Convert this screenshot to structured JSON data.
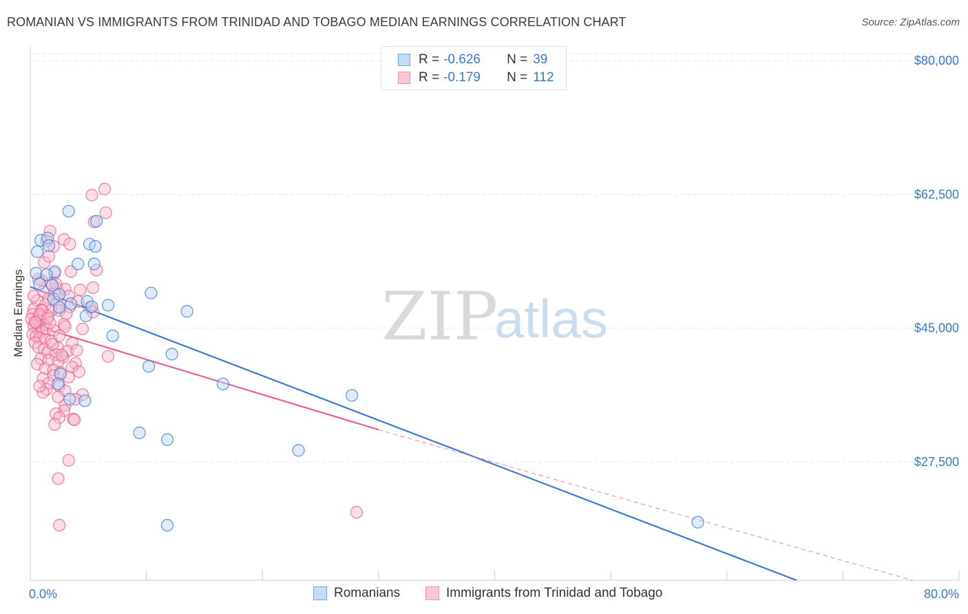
{
  "title": "ROMANIAN VS IMMIGRANTS FROM TRINIDAD AND TOBAGO MEDIAN EARNINGS CORRELATION CHART",
  "source": "Source: ZipAtlas.com",
  "watermark": {
    "zip": "ZIP",
    "atlas": "atlas"
  },
  "legend_top": {
    "rows": [
      {
        "r_label": "R =",
        "r_value": "-0.626",
        "n_label": "N =",
        "n_value": "39",
        "color": "#6fa8e8",
        "fill": "#c5dcf7"
      },
      {
        "r_label": "R =",
        "r_value": "-0.179",
        "n_label": "N =",
        "n_value": "112",
        "color": "#ee8fad",
        "fill": "#f9c8d7"
      }
    ]
  },
  "legend_bottom": [
    {
      "label": "Romanians",
      "color": "#6fa8e8",
      "fill": "#c5dcf7"
    },
    {
      "label": "Immigrants from Trinidad and Tobago",
      "color": "#ee8fad",
      "fill": "#f9c8d7"
    }
  ],
  "chart_data": {
    "type": "scatter",
    "title": "ROMANIAN VS IMMIGRANTS FROM TRINIDAD AND TOBAGO MEDIAN EARNINGS CORRELATION CHART",
    "xlabel": "",
    "ylabel": "Median Earnings",
    "xlim": [
      0,
      80
    ],
    "ylim": [
      12000,
      82000
    ],
    "x_tick_labels": [
      "0.0%",
      "80.0%"
    ],
    "y_ticks": [
      27500,
      45000,
      62500,
      80000
    ],
    "y_tick_labels": [
      "$27,500",
      "$45,000",
      "$62,500",
      "$80,000"
    ],
    "grid": true,
    "legend_placement": "top-center",
    "series": [
      {
        "name": "Romanians",
        "color": "#3a78d4",
        "fill": "#b9d3f3",
        "points": [
          [
            0.6,
            55000
          ],
          [
            0.5,
            52200
          ],
          [
            0.9,
            56500
          ],
          [
            1.5,
            56800
          ],
          [
            3.3,
            60300
          ],
          [
            5.7,
            59000
          ],
          [
            2.1,
            52400
          ],
          [
            1.9,
            50600
          ],
          [
            2.0,
            48800
          ],
          [
            2.5,
            47700
          ],
          [
            1.6,
            55800
          ],
          [
            5.1,
            56000
          ],
          [
            5.6,
            55700
          ],
          [
            4.1,
            53400
          ],
          [
            2.5,
            49400
          ],
          [
            4.9,
            48500
          ],
          [
            4.8,
            46600
          ],
          [
            5.3,
            47800
          ],
          [
            5.5,
            53400
          ],
          [
            6.7,
            48000
          ],
          [
            10.4,
            49600
          ],
          [
            13.5,
            47200
          ],
          [
            7.1,
            44000
          ],
          [
            12.2,
            41600
          ],
          [
            10.2,
            40000
          ],
          [
            2.6,
            39000
          ],
          [
            2.4,
            37700
          ],
          [
            3.4,
            35700
          ],
          [
            4.7,
            35500
          ],
          [
            16.6,
            37700
          ],
          [
            27.7,
            36200
          ],
          [
            9.4,
            31300
          ],
          [
            11.8,
            30400
          ],
          [
            23.1,
            29000
          ],
          [
            11.8,
            19200
          ],
          [
            57.5,
            19600
          ],
          [
            0.8,
            50800
          ],
          [
            1.4,
            52000
          ],
          [
            3.5,
            48200
          ]
        ],
        "trend": {
          "x": [
            0,
            66
          ],
          "y": [
            50400,
            12000
          ]
        }
      },
      {
        "name": "Immigrants from Trinidad and Tobago",
        "color": "#e8608c",
        "fill": "#f6b8cc",
        "points": [
          [
            6.4,
            63200
          ],
          [
            5.3,
            62400
          ],
          [
            6.5,
            60100
          ],
          [
            5.5,
            58900
          ],
          [
            1.7,
            57700
          ],
          [
            2.9,
            56600
          ],
          [
            2.0,
            55700
          ],
          [
            1.4,
            56400
          ],
          [
            1.2,
            53600
          ],
          [
            3.4,
            56000
          ],
          [
            1.6,
            54400
          ],
          [
            2.1,
            52200
          ],
          [
            3.5,
            52400
          ],
          [
            5.7,
            52600
          ],
          [
            1.0,
            51200
          ],
          [
            1.8,
            50900
          ],
          [
            0.7,
            51400
          ],
          [
            2.3,
            50200
          ],
          [
            3.0,
            50100
          ],
          [
            4.3,
            50000
          ],
          [
            1.1,
            49800
          ],
          [
            2.1,
            49500
          ],
          [
            1.6,
            48900
          ],
          [
            3.3,
            49200
          ],
          [
            0.6,
            48600
          ],
          [
            1.3,
            48100
          ],
          [
            2.3,
            48300
          ],
          [
            3.4,
            47800
          ],
          [
            4.1,
            48500
          ],
          [
            0.3,
            47500
          ],
          [
            1.0,
            47400
          ],
          [
            1.8,
            47300
          ],
          [
            2.5,
            47300
          ],
          [
            0.2,
            46800
          ],
          [
            0.8,
            46500
          ],
          [
            1.5,
            46600
          ],
          [
            3.1,
            46900
          ],
          [
            5.4,
            47100
          ],
          [
            0.1,
            46200
          ],
          [
            0.6,
            46000
          ],
          [
            0.9,
            45900
          ],
          [
            1.2,
            45400
          ],
          [
            0.3,
            45300
          ],
          [
            0.7,
            44800
          ],
          [
            1.0,
            44600
          ],
          [
            1.4,
            44900
          ],
          [
            2.0,
            44700
          ],
          [
            0.2,
            44200
          ],
          [
            0.5,
            43900
          ],
          [
            0.8,
            43700
          ],
          [
            1.3,
            43500
          ],
          [
            1.8,
            43300
          ],
          [
            2.5,
            44000
          ],
          [
            3.6,
            43000
          ],
          [
            0.4,
            43100
          ],
          [
            0.7,
            42500
          ],
          [
            1.2,
            42200
          ],
          [
            2.4,
            42400
          ],
          [
            3.2,
            42000
          ],
          [
            4.0,
            42100
          ],
          [
            1.5,
            41800
          ],
          [
            2.2,
            41500
          ],
          [
            2.8,
            41200
          ],
          [
            0.9,
            41000
          ],
          [
            1.6,
            40800
          ],
          [
            2.4,
            40600
          ],
          [
            3.9,
            40400
          ],
          [
            6.7,
            41300
          ],
          [
            0.6,
            40300
          ],
          [
            1.3,
            39700
          ],
          [
            2.0,
            39500
          ],
          [
            3.6,
            39900
          ],
          [
            2.6,
            39200
          ],
          [
            2.0,
            38800
          ],
          [
            3.3,
            38600
          ],
          [
            1.1,
            38400
          ],
          [
            1.6,
            37800
          ],
          [
            2.5,
            37400
          ],
          [
            1.4,
            37000
          ],
          [
            3.0,
            36800
          ],
          [
            1.1,
            36600
          ],
          [
            4.5,
            36300
          ],
          [
            0.8,
            37400
          ],
          [
            2.4,
            36000
          ],
          [
            3.9,
            35700
          ],
          [
            3.0,
            34900
          ],
          [
            2.9,
            34200
          ],
          [
            2.2,
            33800
          ],
          [
            2.5,
            33300
          ],
          [
            3.7,
            33100
          ],
          [
            3.8,
            33000
          ],
          [
            2.1,
            32400
          ],
          [
            3.3,
            27700
          ],
          [
            2.4,
            25300
          ],
          [
            28.1,
            20900
          ],
          [
            2.5,
            19200
          ],
          [
            1.7,
            45700
          ],
          [
            0.5,
            45700
          ],
          [
            2.9,
            45500
          ],
          [
            4.5,
            44900
          ],
          [
            5.1,
            47700
          ],
          [
            5.4,
            50300
          ],
          [
            1.0,
            47300
          ],
          [
            0.3,
            49200
          ],
          [
            0.8,
            46800
          ],
          [
            1.9,
            42900
          ],
          [
            2.7,
            41500
          ],
          [
            1.5,
            46300
          ],
          [
            0.4,
            45800
          ],
          [
            2.2,
            50800
          ],
          [
            3.0,
            45200
          ],
          [
            4.2,
            39300
          ]
        ],
        "trend": {
          "x": [
            0,
            30
          ],
          "y": [
            45500,
            31700
          ]
        },
        "trend_extension": {
          "x": [
            30,
            76
          ],
          "y": [
            31700,
            12000
          ]
        }
      }
    ]
  }
}
